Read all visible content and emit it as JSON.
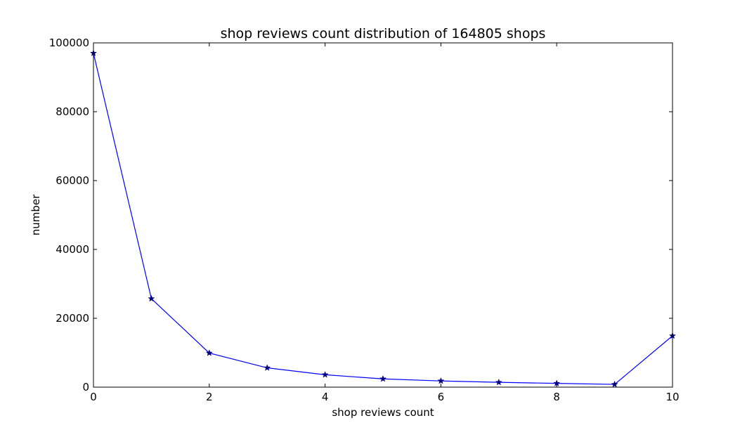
{
  "chart_data": {
    "type": "line",
    "title": "shop reviews count distribution of 164805 shops",
    "xlabel": "shop reviews count",
    "ylabel": "number",
    "xlim": [
      0,
      10
    ],
    "ylim": [
      0,
      100000
    ],
    "xticks": [
      0,
      2,
      4,
      6,
      8,
      10
    ],
    "yticks": [
      0,
      20000,
      40000,
      60000,
      80000,
      100000
    ],
    "grid": false,
    "series": [
      {
        "marker": "star",
        "color": "#0000ff",
        "marker_color": "#000080",
        "x": [
          0,
          1,
          2,
          3,
          4,
          5,
          6,
          7,
          8,
          9,
          10
        ],
        "y": [
          97000,
          25700,
          9900,
          5600,
          3600,
          2400,
          1800,
          1400,
          1100,
          800,
          14900
        ]
      }
    ]
  }
}
